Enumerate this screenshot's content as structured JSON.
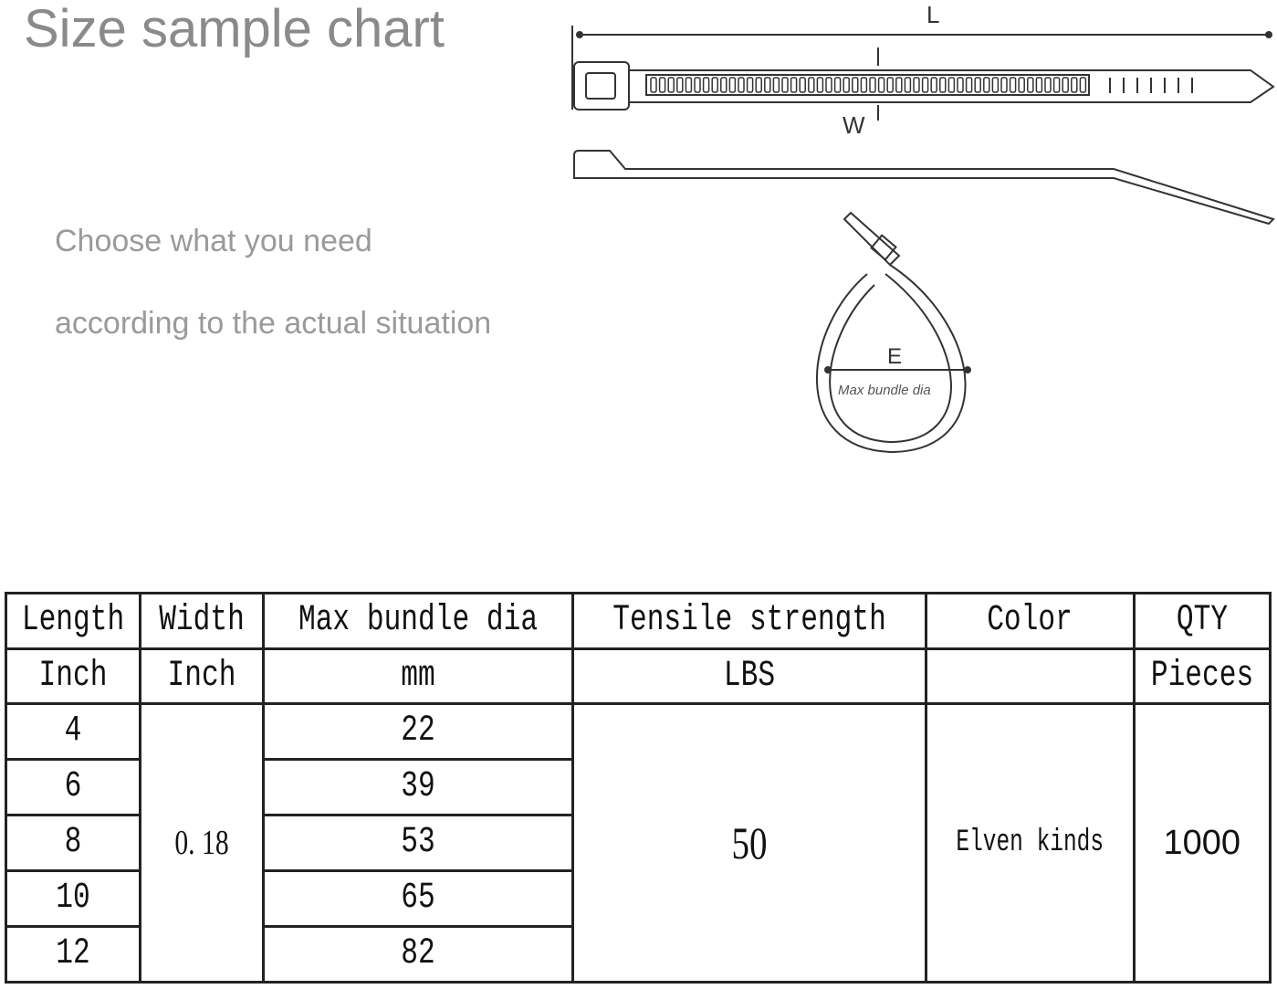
{
  "title": "Size sample chart",
  "subtitle_lines": [
    "Choose what you need",
    "according to the actual situation"
  ],
  "diagram": {
    "length_label": "L",
    "width_label": "W",
    "bundle_label": "E",
    "bundle_caption": "Max bundle dia"
  },
  "table": {
    "headers": [
      "Length",
      "Width",
      "Max bundle dia",
      "Tensile strength",
      "Color",
      "QTY"
    ],
    "units": [
      "Inch",
      "Inch",
      "mm",
      "LBS",
      "",
      "Pieces"
    ],
    "lengths": [
      "4",
      "6",
      "8",
      "10",
      "12"
    ],
    "width": "0. 18",
    "max_bundle_dia": [
      "22",
      "39",
      "53",
      "65",
      "82"
    ],
    "tensile_strength": "50",
    "color": "Elven kinds",
    "qty": "1000"
  }
}
